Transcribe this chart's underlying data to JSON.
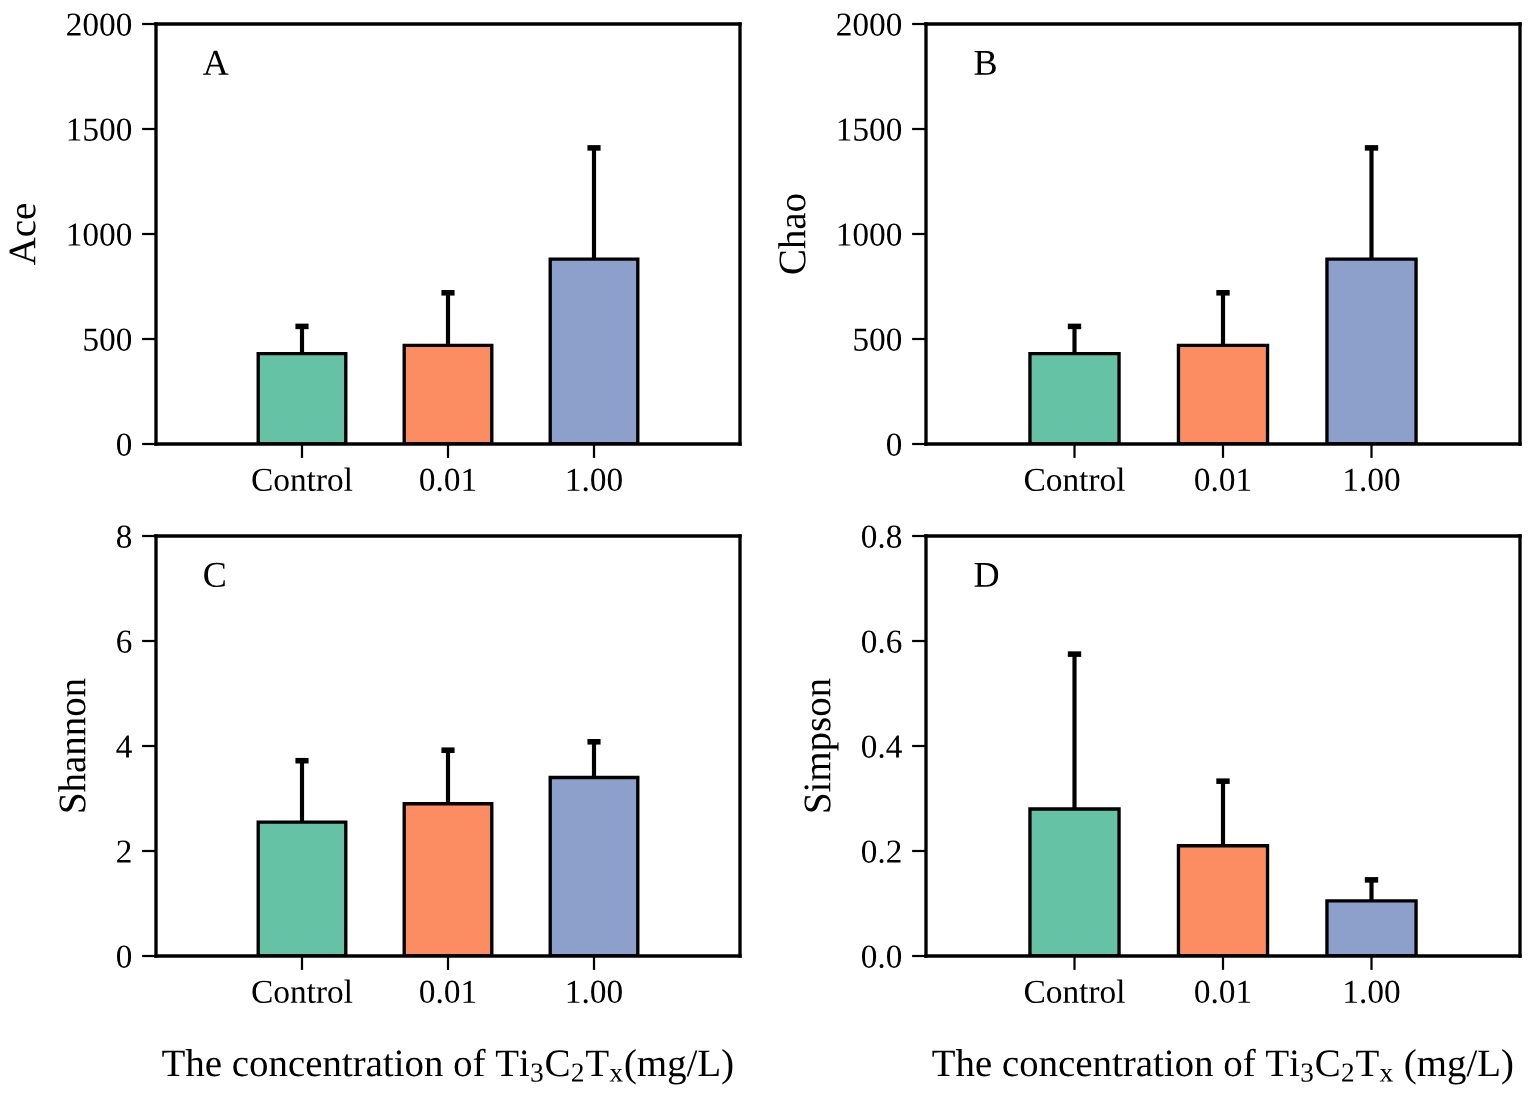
{
  "chart_data": [
    {
      "type": "bar",
      "ylabel": "Ace",
      "annotations": [
        "A"
      ],
      "categories": [
        "Control",
        "0.01",
        "1.00"
      ],
      "series": [
        {
          "colors": [
            "#66c2a5",
            "#fc8d62",
            "#8da0cb"
          ],
          "values": [
            430,
            470,
            880
          ],
          "errors": [
            [
              430,
              560
            ],
            [
              470,
              720
            ],
            [
              880,
              1410
            ]
          ]
        }
      ],
      "ylim": [
        0,
        2000
      ],
      "yticks": [
        0,
        500,
        1000,
        1500,
        2000
      ],
      "grid": false,
      "legend": false
    },
    {
      "type": "bar",
      "ylabel": "Chao",
      "annotations": [
        "B"
      ],
      "categories": [
        "Control",
        "0.01",
        "1.00"
      ],
      "series": [
        {
          "colors": [
            "#66c2a5",
            "#fc8d62",
            "#8da0cb"
          ],
          "values": [
            430,
            470,
            880
          ],
          "errors": [
            [
              430,
              560
            ],
            [
              470,
              720
            ],
            [
              880,
              1410
            ]
          ]
        }
      ],
      "ylim": [
        0,
        2000
      ],
      "yticks": [
        0,
        500,
        1000,
        1500,
        2000
      ],
      "grid": false,
      "legend": false
    },
    {
      "type": "bar",
      "ylabel": "Shannon",
      "xlabel": "The concentration of Ti$_{3}$C$_{2}$T$_{x}$(mg/L)",
      "annotations": [
        "C"
      ],
      "categories": [
        "Control",
        "0.01",
        "1.00"
      ],
      "series": [
        {
          "colors": [
            "#66c2a5",
            "#fc8d62",
            "#8da0cb"
          ],
          "values": [
            2.55,
            2.9,
            3.4
          ],
          "errors": [
            [
              2.55,
              3.72
            ],
            [
              2.9,
              3.92
            ],
            [
              3.4,
              4.08
            ]
          ]
        }
      ],
      "ylim": [
        0,
        8
      ],
      "yticks": [
        0,
        2,
        4,
        6,
        8
      ],
      "grid": false,
      "legend": false
    },
    {
      "type": "bar",
      "ylabel": "Simpson",
      "xlabel": "The concentration of Ti$_{3}$C$_{2}$T$_{x}$ (mg/L)",
      "annotations": [
        "D"
      ],
      "categories": [
        "Control",
        "0.01",
        "1.00"
      ],
      "series": [
        {
          "colors": [
            "#66c2a5",
            "#fc8d62",
            "#8da0cb"
          ],
          "values": [
            0.28,
            0.21,
            0.105
          ],
          "errors": [
            [
              0.28,
              0.575
            ],
            [
              0.21,
              0.333
            ],
            [
              0.105,
              0.145
            ]
          ]
        }
      ],
      "ylim": [
        0,
        0.8
      ],
      "yticks": [
        {
          "value": 0,
          "label": "0.0"
        },
        0.2,
        0.4,
        0.6,
        0.8
      ],
      "grid": false,
      "legend": false
    }
  ]
}
